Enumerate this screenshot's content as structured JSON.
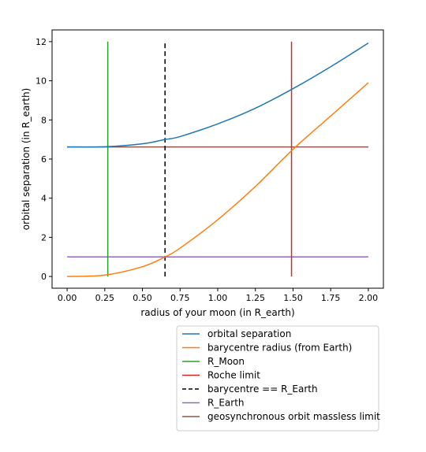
{
  "chart_data": {
    "type": "line",
    "xlabel": "radius of your moon (in R_earth)",
    "ylabel": "orbital separation (in R_earth)",
    "xlim": [
      -0.1,
      2.1
    ],
    "ylim": [
      -0.6,
      12.6
    ],
    "x_ticks": [
      "0.00",
      "0.25",
      "0.50",
      "0.75",
      "1.00",
      "1.25",
      "1.50",
      "1.75",
      "2.00"
    ],
    "y_ticks": [
      "0",
      "2",
      "4",
      "6",
      "8",
      "10",
      "12"
    ],
    "grid": false,
    "legend_placement": "below-plot",
    "series": [
      {
        "name": "orbital separation",
        "color": "#1f77b4",
        "style": "solid",
        "x": [
          0.0,
          0.25,
          0.5,
          0.65,
          0.75,
          1.0,
          1.25,
          1.5,
          1.75,
          2.0
        ],
        "y": [
          6.62,
          6.63,
          6.78,
          7.0,
          7.15,
          7.8,
          8.6,
          9.6,
          10.72,
          11.93
        ]
      },
      {
        "name": "barycentre radius (from Earth)",
        "color": "#ff7f0e",
        "style": "solid",
        "x": [
          0.0,
          0.25,
          0.5,
          0.65,
          0.75,
          1.0,
          1.25,
          1.5,
          1.75,
          2.0
        ],
        "y": [
          0.0,
          0.07,
          0.5,
          1.0,
          1.45,
          2.9,
          4.6,
          6.5,
          8.2,
          9.9
        ]
      },
      {
        "name": "R_Moon",
        "color": "#2ca02c",
        "style": "solid",
        "x": [
          0.27,
          0.27
        ],
        "y": [
          0,
          12
        ]
      },
      {
        "name": "Roche limit",
        "color": "#d62728",
        "style": "solid",
        "x": [
          1.49,
          1.49
        ],
        "y": [
          0,
          12
        ]
      },
      {
        "name": "barycentre == R_Earth",
        "color": "#000000",
        "style": "dashed",
        "x": [
          0.65,
          0.65
        ],
        "y": [
          0,
          12
        ]
      },
      {
        "name": "R_Earth",
        "color": "#9467bd",
        "style": "solid",
        "x": [
          0,
          2
        ],
        "y": [
          1,
          1
        ]
      },
      {
        "name": "geosynchronous orbit massless limit",
        "color": "#8c564b",
        "style": "solid",
        "x": [
          0,
          2
        ],
        "y": [
          6.62,
          6.62
        ]
      }
    ]
  }
}
